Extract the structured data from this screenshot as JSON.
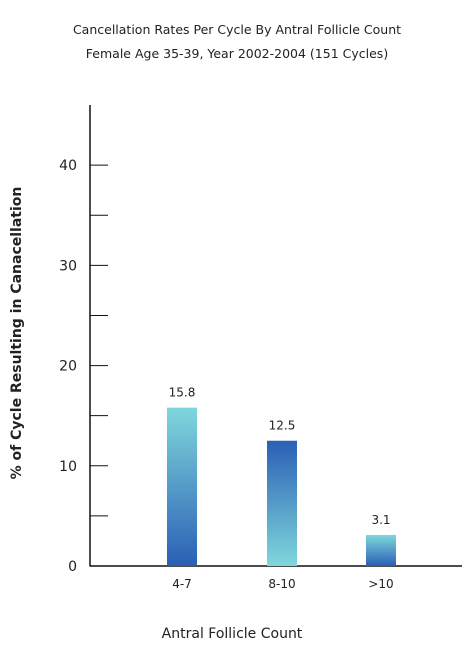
{
  "chart_data": {
    "type": "bar",
    "title": "Cancellation Rates Per Cycle By Antral Follicle Count",
    "subtitle": "Female  Age 35-39, Year 2002-2004 (151 Cycles)",
    "xlabel": "Antral Follicle Count",
    "ylabel": "% of Cycle Resulting in Canacellation",
    "categories": [
      "4-7",
      "8-10",
      ">10"
    ],
    "values": [
      15.8,
      12.5,
      3.1
    ],
    "data_labels": [
      "15.8",
      "12.5",
      "3.1"
    ],
    "ylim": [
      0,
      46
    ],
    "yticks_major": [
      0,
      10,
      20,
      30,
      40
    ],
    "ytick_labels": [
      "0",
      "10",
      "20",
      "30",
      "40"
    ],
    "yticks_minor": [
      5,
      15,
      25,
      35
    ],
    "grid": false,
    "colors": {
      "light": "#7fd7dc",
      "dark": "#2a5fb5",
      "axis": "#111111"
    },
    "gradient_direction": [
      "top-light",
      "top-dark",
      "top-light"
    ]
  }
}
